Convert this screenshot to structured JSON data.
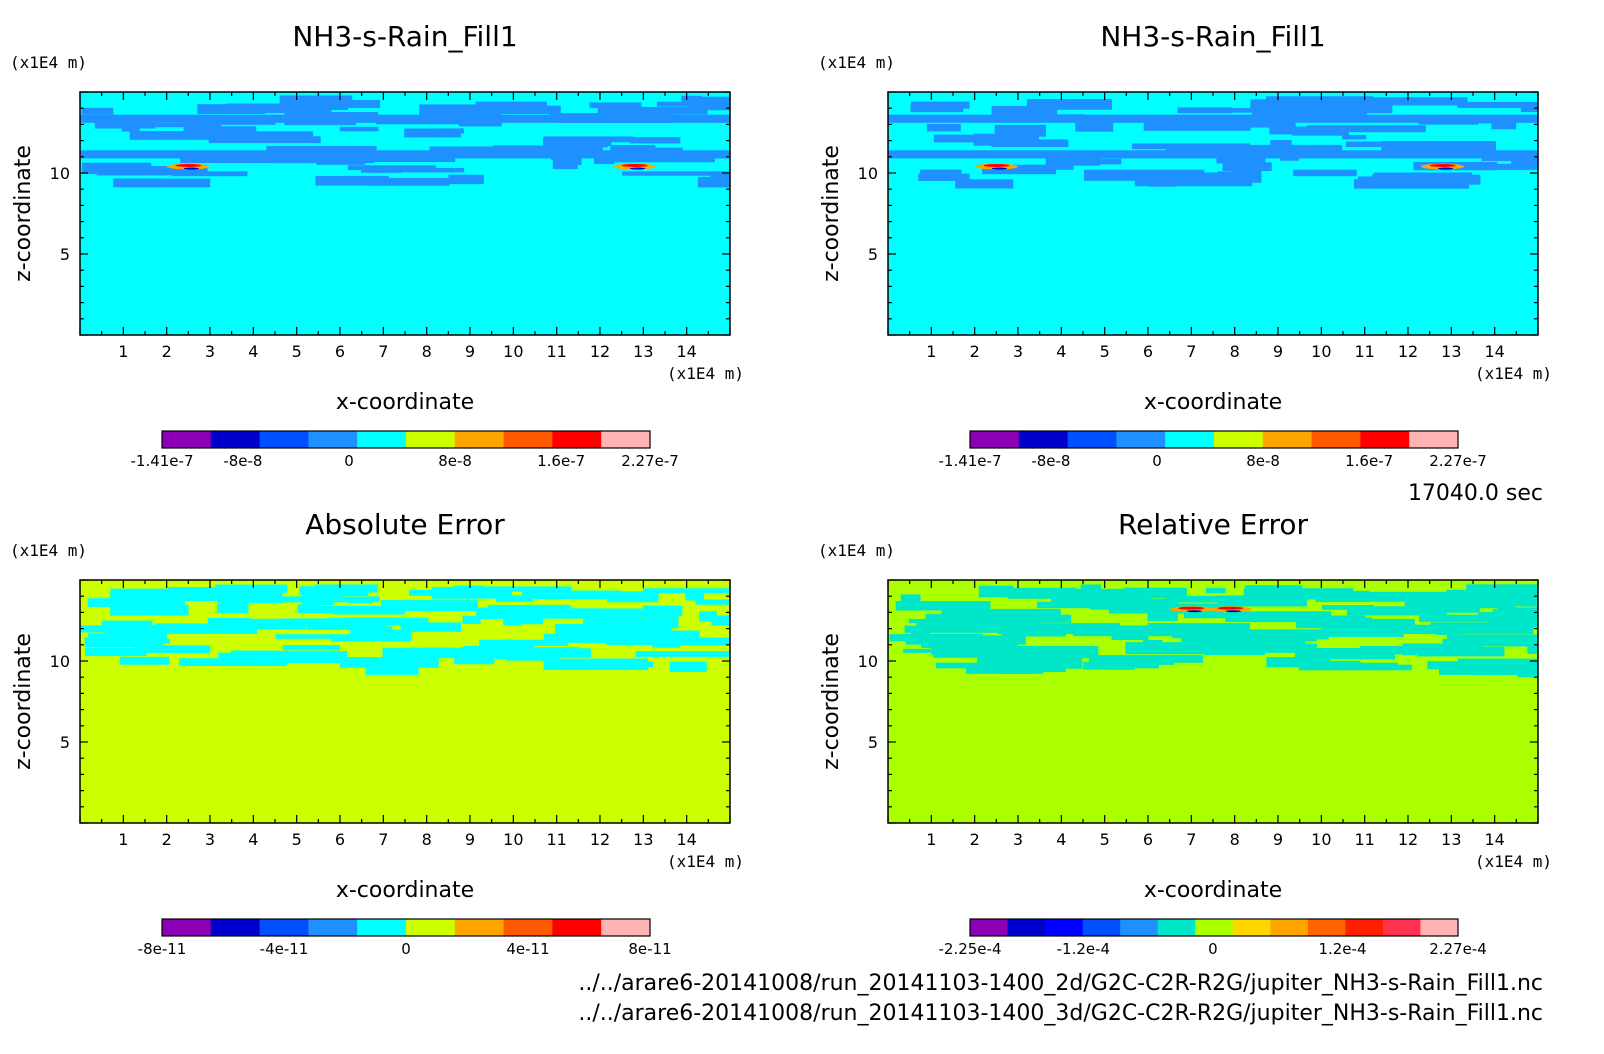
{
  "time_label": "17040.0 sec",
  "files": [
    "../../arare6-20141008/run_20141103-1400_2d/G2C-C2R-R2G/jupiter_NH3-s-Rain_Fill1.nc",
    "../../arare6-20141008/run_20141103-1400_3d/G2C-C2R-R2G/jupiter_NH3-s-Rain_Fill1.nc"
  ],
  "chart_data": [
    {
      "type": "heatmap",
      "title": "NH3-s-Rain_Fill1",
      "xlabel": "x-coordinate",
      "ylabel": "z-coordinate",
      "xunit": "(x1E4 m)",
      "yunit": "(x1E4 m)",
      "xlim": [
        0,
        15
      ],
      "ylim": [
        0,
        15
      ],
      "xticks": [
        "1",
        "2",
        "3",
        "4",
        "5",
        "6",
        "7",
        "8",
        "9",
        "10",
        "11",
        "12",
        "13",
        "14"
      ],
      "yticks": [
        "5",
        "10"
      ],
      "background_color": "#00ffff",
      "band_color": "#1e90ff",
      "hotspots": [
        {
          "x": 2.5,
          "z": 10.4
        },
        {
          "x": 12.8,
          "z": 10.4
        }
      ],
      "hotspot_colors": [
        "#ff0000",
        "#ffa500",
        "#0000cd"
      ],
      "colorbar": {
        "colors": [
          "#8b00b4",
          "#0000cd",
          "#0050ff",
          "#1e90ff",
          "#00ffff",
          "#ccff00",
          "#ffa500",
          "#ff5a00",
          "#ff0000",
          "#ffb4b4"
        ],
        "labels": [
          "-1.41e-7",
          "-8e-8",
          "0",
          "8e-8",
          "1.6e-7",
          "2.27e-7"
        ]
      }
    },
    {
      "type": "heatmap",
      "title": "NH3-s-Rain_Fill1",
      "xlabel": "x-coordinate",
      "ylabel": "z-coordinate",
      "xunit": "(x1E4 m)",
      "yunit": "(x1E4 m)",
      "xlim": [
        0,
        15
      ],
      "ylim": [
        0,
        15
      ],
      "xticks": [
        "1",
        "2",
        "3",
        "4",
        "5",
        "6",
        "7",
        "8",
        "9",
        "10",
        "11",
        "12",
        "13",
        "14"
      ],
      "yticks": [
        "5",
        "10"
      ],
      "background_color": "#00ffff",
      "band_color": "#1e90ff",
      "hotspots": [
        {
          "x": 2.5,
          "z": 10.4
        },
        {
          "x": 12.8,
          "z": 10.4
        }
      ],
      "hotspot_colors": [
        "#ff0000",
        "#ffa500",
        "#0000cd"
      ],
      "colorbar": {
        "colors": [
          "#8b00b4",
          "#0000cd",
          "#0050ff",
          "#1e90ff",
          "#00ffff",
          "#ccff00",
          "#ffa500",
          "#ff5a00",
          "#ff0000",
          "#ffb4b4"
        ],
        "labels": [
          "-1.41e-7",
          "-8e-8",
          "0",
          "8e-8",
          "1.6e-7",
          "2.27e-7"
        ]
      }
    },
    {
      "type": "heatmap",
      "title": "Absolute Error",
      "xlabel": "x-coordinate",
      "ylabel": "z-coordinate",
      "xunit": "(x1E4 m)",
      "yunit": "(x1E4 m)",
      "xlim": [
        0,
        15
      ],
      "ylim": [
        0,
        15
      ],
      "xticks": [
        "1",
        "2",
        "3",
        "4",
        "5",
        "6",
        "7",
        "8",
        "9",
        "10",
        "11",
        "12",
        "13",
        "14"
      ],
      "yticks": [
        "5",
        "10"
      ],
      "background_color": "#ccff00",
      "band_color": "#00ffff",
      "hotspots": [],
      "hotspot_colors": [],
      "colorbar": {
        "colors": [
          "#8b00b4",
          "#0000cd",
          "#0050ff",
          "#1e90ff",
          "#00ffff",
          "#ccff00",
          "#ffa500",
          "#ff5a00",
          "#ff0000",
          "#ffb4b4"
        ],
        "labels": [
          "-8e-11",
          "-4e-11",
          "0",
          "4e-11",
          "8e-11"
        ]
      }
    },
    {
      "type": "heatmap",
      "title": "Relative Error",
      "xlabel": "x-coordinate",
      "ylabel": "z-coordinate",
      "xunit": "(x1E4 m)",
      "yunit": "(x1E4 m)",
      "xlim": [
        0,
        15
      ],
      "ylim": [
        0,
        15
      ],
      "xticks": [
        "1",
        "2",
        "3",
        "4",
        "5",
        "6",
        "7",
        "8",
        "9",
        "10",
        "11",
        "12",
        "13",
        "14"
      ],
      "yticks": [
        "5",
        "10"
      ],
      "background_color": "#aaff00",
      "band_color": "#00e6c8",
      "hotspots": [
        {
          "x": 7.0,
          "z": 13.2
        },
        {
          "x": 7.9,
          "z": 13.2
        }
      ],
      "hotspot_colors": [
        "#ff0000",
        "#ffa500",
        "#0000cd"
      ],
      "colorbar": {
        "colors": [
          "#8b00b4",
          "#0000cd",
          "#0000ff",
          "#0050ff",
          "#1e90ff",
          "#00e6c8",
          "#aaff00",
          "#ffd700",
          "#ffa500",
          "#ff6400",
          "#ff1e00",
          "#ff3250",
          "#ffb4b4"
        ],
        "labels": [
          "-2.25e-4",
          "-1.2e-4",
          "0",
          "1.2e-4",
          "2.27e-4"
        ]
      }
    }
  ]
}
